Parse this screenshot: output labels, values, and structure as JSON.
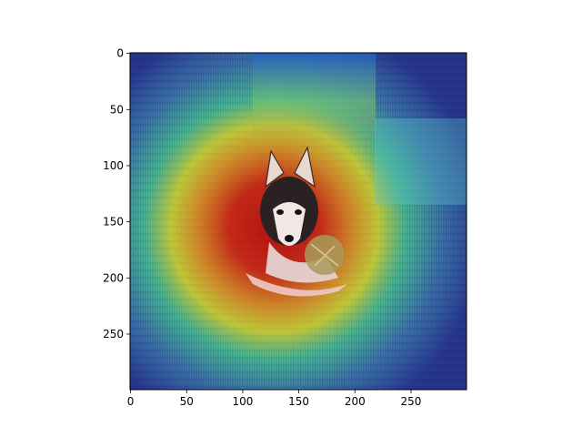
{
  "figure": {
    "type": "image-heatmap-overlay",
    "subject_icon": "husky-puppy",
    "colormap": "jet",
    "x_axis": {
      "ticks": [
        0,
        50,
        100,
        150,
        200,
        250
      ],
      "range": [
        0,
        299
      ]
    },
    "y_axis": {
      "ticks": [
        0,
        50,
        100,
        150,
        200,
        250
      ],
      "range": [
        0,
        299
      ],
      "inverted": true
    },
    "colors": {
      "frame": "#000000",
      "heat_low": "#1e1ea8",
      "heat_mid": "#32c8b4",
      "heat_warm": "#f0e632",
      "heat_high": "#c81414",
      "grass": "#3c6e46"
    }
  },
  "chart_data": {
    "type": "heatmap",
    "title": "",
    "xlabel": "",
    "ylabel": "",
    "xlim": [
      0,
      299
    ],
    "ylim": [
      299,
      0
    ],
    "x_ticks": [
      "0",
      "50",
      "100",
      "150",
      "200",
      "250"
    ],
    "y_ticks": [
      "0",
      "50",
      "100",
      "150",
      "200",
      "250"
    ],
    "grid": false,
    "legend": "none",
    "hotspot_center": [
      150,
      170
    ],
    "hotspot_peak_value": 1.0
  }
}
